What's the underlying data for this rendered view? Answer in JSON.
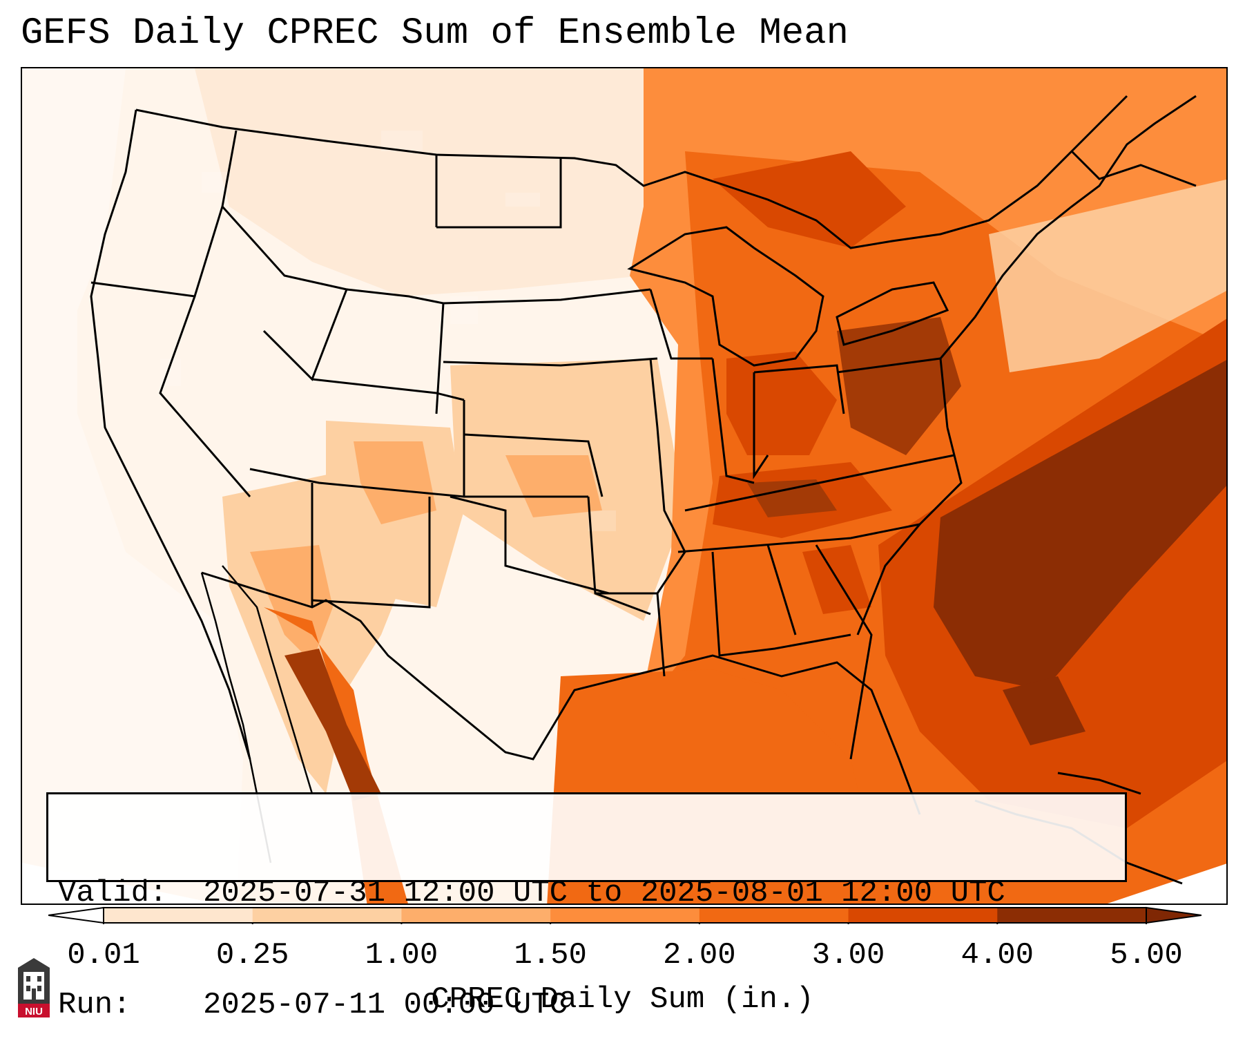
{
  "title": "GEFS Daily CPREC Sum of Ensemble Mean",
  "info": {
    "valid_key": "Valid:",
    "valid_value": "2025-07-31 12:00 UTC to 2025-08-01 12:00 UTC",
    "run_key": "Run:",
    "run_value": "2025-07-11 00:00 UTC"
  },
  "colorbar": {
    "label": "CPREC Daily Sum (in.)",
    "ticks": [
      "0.01",
      "0.25",
      "1.00",
      "1.50",
      "2.00",
      "3.00",
      "4.00",
      "5.00"
    ],
    "colors": [
      "#fff5eb",
      "#fee6ce",
      "#fdd0a2",
      "#fdae6b",
      "#fd8d3c",
      "#f16913",
      "#d94801",
      "#8c2d04"
    ],
    "under_color": "#ffffff",
    "over_color": "#7f2704"
  },
  "logo": {
    "text": "NIU",
    "icon": "niu-logo-icon"
  }
}
